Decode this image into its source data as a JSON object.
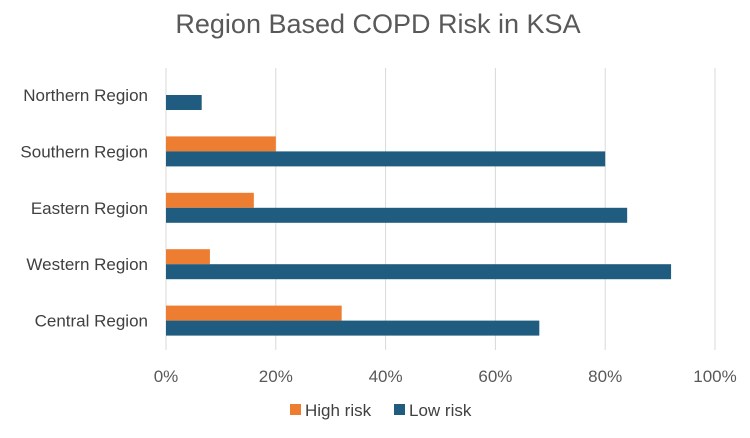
{
  "chart_data": {
    "type": "bar",
    "orientation": "horizontal",
    "title": "Region Based COPD Risk in KSA",
    "categories": [
      "Northern Region",
      "Southern Region",
      "Eastern Region",
      "Western Region",
      "Central Region"
    ],
    "series": [
      {
        "name": "High risk",
        "color": "#ed7d31",
        "values": [
          0,
          20,
          16,
          8,
          32
        ]
      },
      {
        "name": "Low risk",
        "color": "#1f5c7f",
        "values": [
          6.5,
          80,
          84,
          92,
          68
        ]
      }
    ],
    "xlim": [
      0,
      100
    ],
    "xticks": [
      0,
      20,
      40,
      60,
      80,
      100
    ],
    "xtick_labels": [
      "0%",
      "20%",
      "40%",
      "60%",
      "80%",
      "100%"
    ],
    "xlabel": "",
    "ylabel": "",
    "grid": true,
    "legend_position": "bottom"
  }
}
